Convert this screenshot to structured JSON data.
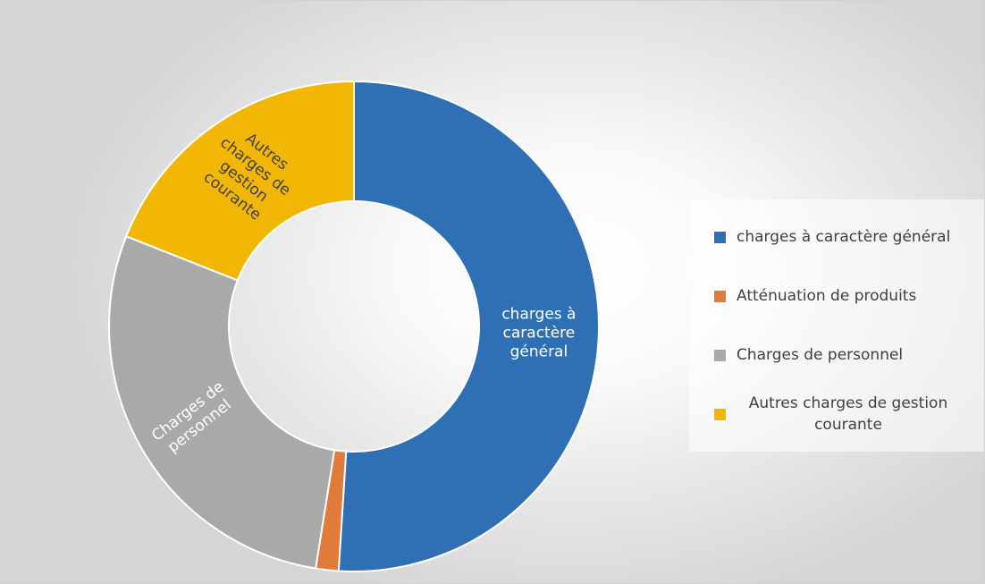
{
  "chart_data": {
    "type": "pie",
    "variant": "donut",
    "title": "",
    "categories": [
      "charges à caractère général",
      "Atténuation de produits",
      "Charges de personnel",
      "Autres charges de gestion courante"
    ],
    "values": [
      51,
      1.5,
      28.5,
      19
    ],
    "value_unit": "percent (estimated from slice angles)",
    "colors": [
      "#2f6fb4",
      "#e07b39",
      "#a9a9a9",
      "#f2b705"
    ],
    "slice_labels": [
      [
        "charges à",
        "caractère",
        "général"
      ],
      [],
      [
        "Charges de",
        "personnel"
      ],
      [
        "Autres",
        "charges de",
        "gestion",
        "courante"
      ]
    ],
    "slice_label_colors": [
      "#ffffff",
      "#ffffff",
      "#ffffff",
      "#404040"
    ],
    "legend": {
      "position": "right",
      "items": [
        {
          "label": "charges à caractère général",
          "color": "#2f6fb4"
        },
        {
          "label": "Atténuation de produits",
          "color": "#e07b39"
        },
        {
          "label": "Charges de personnel",
          "color": "#a9a9a9"
        },
        {
          "label": "Autres charges de gestion courante",
          "color": "#f2b705"
        }
      ]
    },
    "grid": false
  }
}
